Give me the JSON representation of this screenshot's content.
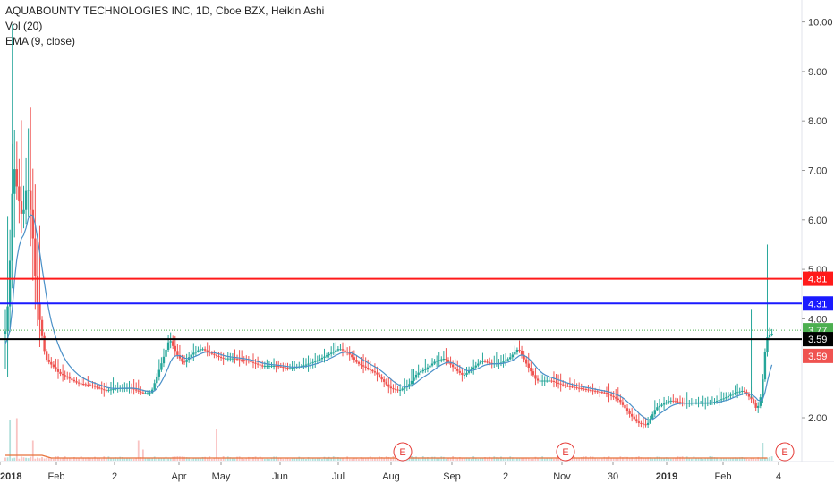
{
  "legend": {
    "title": "AQUABOUNTY TECHNOLOGIES INC, 1D, Cboe BZX, Heikin Ashi",
    "vol": "Vol (20)",
    "ema": "EMA (9, close)"
  },
  "colors": {
    "up": "#26a69a",
    "down": "#ef5350",
    "ema": "#4a90c8",
    "volume_ma": "#e8723a",
    "red_line": "#ff1a1a",
    "blue_line": "#1a1aff",
    "black_line": "#000000",
    "green_tag": "#4caf50",
    "red_tag": "#ef5350"
  },
  "chart_data": {
    "type": "candlestick",
    "y_axis": {
      "ticks": [
        "2.00",
        "4.00",
        "5.00",
        "6.00",
        "7.00",
        "8.00",
        "9.00",
        "10.00"
      ],
      "tick_values": [
        2,
        4,
        5,
        6,
        7,
        8,
        9,
        10
      ],
      "ylim": [
        1,
        10.5
      ]
    },
    "x_axis": {
      "ticks": [
        "2018",
        "Feb",
        "2",
        "Apr",
        "May",
        "Jun",
        "Jul",
        "Aug",
        "Sep",
        "2",
        "Nov",
        "30",
        "2019",
        "Feb",
        "4"
      ],
      "bold_ticks": [
        "2018",
        "2019"
      ]
    },
    "horizontal_lines": [
      {
        "value": 4.81,
        "label": "4.81",
        "color": "#ff1a1a"
      },
      {
        "value": 4.31,
        "label": "4.31",
        "color": "#1a1aff"
      },
      {
        "value": 3.59,
        "label": "3.59",
        "color": "#000000"
      }
    ],
    "dotted_lines": [
      3.77
    ],
    "price_tags": [
      {
        "value": 3.77,
        "label": "3.77",
        "color": "#4caf50"
      },
      {
        "value": 3.59,
        "label": "3.59",
        "color": "#000000"
      },
      {
        "value": 3.25,
        "label": "3.59",
        "color": "#ef5350"
      }
    ],
    "earnings_markers": [
      {
        "label": "E",
        "date": "Aug"
      },
      {
        "label": "E",
        "date": "Nov"
      },
      {
        "label": "E",
        "date": "Mar 2019"
      }
    ],
    "price_path": [
      [
        0,
        3.5
      ],
      [
        2,
        4.5
      ],
      [
        4,
        7.2
      ],
      [
        6,
        6.5
      ],
      [
        8,
        6.0
      ],
      [
        10,
        6.8
      ],
      [
        12,
        6.0
      ],
      [
        14,
        4.5
      ],
      [
        16,
        3.8
      ],
      [
        18,
        3.2
      ],
      [
        20,
        3.1
      ],
      [
        24,
        2.9
      ],
      [
        28,
        2.8
      ],
      [
        32,
        2.7
      ],
      [
        38,
        2.65
      ],
      [
        44,
        2.55
      ],
      [
        50,
        2.6
      ],
      [
        55,
        2.6
      ],
      [
        60,
        2.5
      ],
      [
        64,
        2.5
      ],
      [
        67,
        2.9
      ],
      [
        70,
        3.3
      ],
      [
        72,
        3.6
      ],
      [
        75,
        3.3
      ],
      [
        78,
        3.1
      ],
      [
        82,
        3.3
      ],
      [
        86,
        3.4
      ],
      [
        90,
        3.3
      ],
      [
        95,
        3.2
      ],
      [
        100,
        3.2
      ],
      [
        106,
        3.15
      ],
      [
        112,
        3.05
      ],
      [
        118,
        3.05
      ],
      [
        124,
        3.0
      ],
      [
        130,
        3.05
      ],
      [
        136,
        3.15
      ],
      [
        142,
        3.3
      ],
      [
        146,
        3.4
      ],
      [
        150,
        3.3
      ],
      [
        154,
        3.1
      ],
      [
        158,
        3.0
      ],
      [
        162,
        2.9
      ],
      [
        168,
        2.6
      ],
      [
        172,
        2.55
      ],
      [
        176,
        2.65
      ],
      [
        180,
        2.9
      ],
      [
        184,
        3.0
      ],
      [
        188,
        3.15
      ],
      [
        192,
        3.2
      ],
      [
        196,
        3.0
      ],
      [
        200,
        2.85
      ],
      [
        204,
        3.0
      ],
      [
        208,
        3.15
      ],
      [
        212,
        3.1
      ],
      [
        216,
        3.1
      ],
      [
        220,
        3.2
      ],
      [
        224,
        3.4
      ],
      [
        228,
        3.05
      ],
      [
        232,
        2.75
      ],
      [
        238,
        2.75
      ],
      [
        244,
        2.65
      ],
      [
        250,
        2.6
      ],
      [
        256,
        2.55
      ],
      [
        262,
        2.5
      ],
      [
        268,
        2.35
      ],
      [
        272,
        2.1
      ],
      [
        276,
        1.9
      ],
      [
        280,
        1.85
      ],
      [
        284,
        2.2
      ],
      [
        290,
        2.35
      ],
      [
        296,
        2.3
      ],
      [
        302,
        2.3
      ],
      [
        308,
        2.3
      ],
      [
        314,
        2.4
      ],
      [
        318,
        2.5
      ],
      [
        322,
        2.55
      ],
      [
        326,
        2.35
      ],
      [
        328,
        2.15
      ],
      [
        330,
        2.5
      ],
      [
        332,
        3.6
      ],
      [
        334,
        3.7
      ]
    ],
    "volume_spikes": [
      {
        "t": 2,
        "v": 0.9
      },
      {
        "t": 5,
        "v": 0.95
      },
      {
        "t": 12,
        "v": 0.45
      },
      {
        "t": 58,
        "v": 0.45
      },
      {
        "t": 60,
        "v": 0.25
      },
      {
        "t": 92,
        "v": 0.7
      },
      {
        "t": 330,
        "v": 0.4
      }
    ]
  }
}
